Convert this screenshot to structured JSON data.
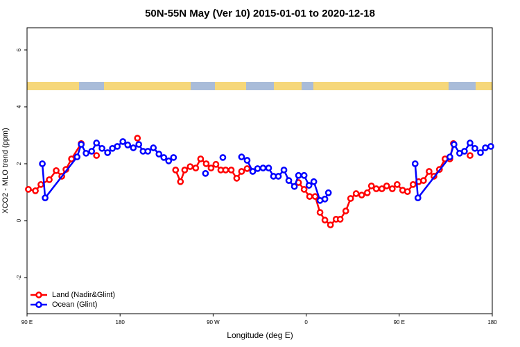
{
  "chart_data": {
    "type": "line",
    "title": "50N-55N May (Ver 10)   2015-01-01 to 2020-12-18",
    "x_label": "Longitude (deg E)",
    "y_label": "XCO2 - MLO trend (ppm)",
    "xlim": [
      90,
      540
    ],
    "xticks": [
      {
        "value": 90,
        "label": "90 E"
      },
      {
        "value": 180,
        "label": "180"
      },
      {
        "value": 270,
        "label": "90 W"
      },
      {
        "value": 360,
        "label": "0"
      },
      {
        "value": 450,
        "label": "90 E"
      },
      {
        "value": 540,
        "label": "180"
      }
    ],
    "ylim": [
      -3.27,
      6.78
    ],
    "yticks": [
      -2,
      0,
      2,
      4,
      6
    ],
    "legend": "bottom-left",
    "series": [
      {
        "name": "Land (Nadir&Glint)",
        "color": "#ff0000",
        "x": [
          91.3,
          98.1,
          103.4,
          111.5,
          118.2,
          123.6,
          127.6,
          133.0,
          142.4,
          null,
          157.2,
          null,
          196.8,
          null,
          233.7,
          238.4,
          242.5,
          247.8,
          253.2,
          257.9,
          263.3,
          268.0,
          272.7,
          277.4,
          282.1,
          287.5,
          292.8,
          297.5,
          302.9,
          null,
          352.6,
          358.0,
          363.3,
          368.7,
          373.4,
          378.1,
          383.5,
          388.9,
          392.9,
          398.3,
          403.0,
          408.3,
          413.7,
          419.1,
          423.1,
          427.8,
          433.2,
          437.9,
          443.3,
          448.0,
          453.3,
          458.0,
          463.4,
          468.8,
          473.5,
          478.9,
          483.6,
          488.9,
          494.3,
          499.0,
          502.4,
          null,
          518.5
        ],
        "values": [
          1.1,
          1.05,
          1.27,
          1.44,
          1.76,
          1.56,
          1.8,
          2.17,
          2.71,
          null,
          2.29,
          null,
          2.9,
          null,
          1.78,
          1.37,
          1.78,
          1.9,
          1.85,
          2.17,
          2.0,
          1.85,
          1.98,
          1.78,
          1.78,
          1.78,
          1.49,
          1.73,
          1.83,
          null,
          1.34,
          1.1,
          0.85,
          0.85,
          0.29,
          0.02,
          -0.15,
          0.05,
          0.05,
          0.34,
          0.78,
          0.95,
          0.9,
          0.98,
          1.22,
          1.12,
          1.12,
          1.22,
          1.12,
          1.27,
          1.07,
          1.02,
          1.27,
          1.37,
          1.41,
          1.73,
          1.56,
          1.8,
          2.17,
          2.17,
          2.71,
          null,
          2.29
        ]
      },
      {
        "name": "Ocean (Glint)",
        "color": "#0000ff",
        "x": [
          104.8,
          107.5,
          138.4,
          142.4,
          147.1,
          152.5,
          157.2,
          162.5,
          167.9,
          172.6,
          177.3,
          182.7,
          187.4,
          192.8,
          198.1,
          202.2,
          206.9,
          212.2,
          217.6,
          222.3,
          227.0,
          231.7,
          null,
          262.6,
          null,
          279.4,
          null,
          297.5,
          302.9,
          308.3,
          313.0,
          318.3,
          323.7,
          328.4,
          333.1,
          338.5,
          343.2,
          348.6,
          352.6,
          358.0,
          362.7,
          367.4,
          373.4,
          378.1,
          381.5,
          null,
          465.4,
          468.1,
          499.0,
          503.0,
          508.4,
          513.1,
          518.5,
          523.2,
          528.6,
          533.3,
          538.6
        ],
        "values": [
          2.0,
          0.8,
          2.24,
          2.68,
          2.37,
          2.44,
          2.73,
          2.54,
          2.39,
          2.54,
          2.61,
          2.78,
          2.66,
          2.56,
          2.68,
          2.44,
          2.44,
          2.56,
          2.34,
          2.22,
          2.1,
          2.22,
          null,
          1.66,
          null,
          2.22,
          null,
          2.24,
          2.12,
          1.73,
          1.83,
          1.85,
          1.85,
          1.56,
          1.56,
          1.78,
          1.41,
          1.2,
          1.59,
          1.59,
          1.24,
          1.37,
          0.71,
          0.76,
          0.98,
          null,
          2.0,
          0.8,
          2.24,
          2.68,
          2.37,
          2.44,
          2.73,
          2.54,
          2.39,
          2.56,
          2.61
        ]
      }
    ]
  }
}
